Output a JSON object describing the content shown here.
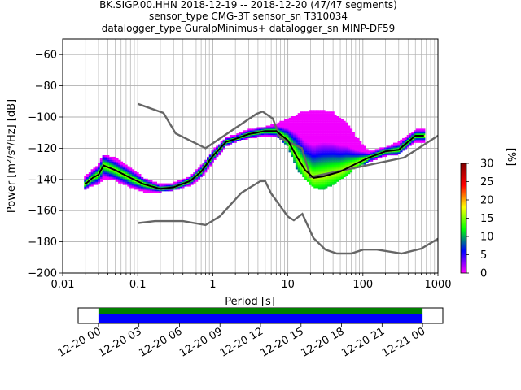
{
  "title_lines": [
    "BK.SIGP.00.HHN   2018-12-19 -- 2018-12-20  (47/47 segments)",
    "sensor_type CMG-3T sensor_sn T310034",
    "datalogger_type GuralpMinimus+ datalogger_sn MINP-DF59"
  ],
  "chart_data": {
    "type": "heatmap",
    "xlabel": "Period [s]",
    "ylabel": "Power [m²/s⁴/Hz] [dB]",
    "xscale": "log",
    "xlim": [
      0.01,
      1000
    ],
    "ylim": [
      -200,
      -50
    ],
    "x_ticks": [
      {
        "value": 0.01,
        "label": "0.01"
      },
      {
        "value": 0.1,
        "label": "0.1"
      },
      {
        "value": 1,
        "label": "1"
      },
      {
        "value": 10,
        "label": "10"
      },
      {
        "value": 100,
        "label": "100"
      },
      {
        "value": 1000,
        "label": "1000"
      }
    ],
    "y_ticks": [
      {
        "value": -60,
        "label": "−60"
      },
      {
        "value": -80,
        "label": "−80"
      },
      {
        "value": -100,
        "label": "−100"
      },
      {
        "value": -120,
        "label": "−120"
      },
      {
        "value": -140,
        "label": "−140"
      },
      {
        "value": -160,
        "label": "−160"
      },
      {
        "value": -180,
        "label": "−180"
      },
      {
        "value": -200,
        "label": "−200"
      }
    ],
    "grid": true,
    "nhnm": [
      [
        0.1,
        -91.5
      ],
      [
        0.22,
        -97.4
      ],
      [
        0.32,
        -110.5
      ],
      [
        0.8,
        -120
      ],
      [
        3.8,
        -98
      ],
      [
        4.6,
        -96.5
      ],
      [
        6.3,
        -101
      ],
      [
        7.9,
        -113.5
      ],
      [
        15.4,
        -120
      ],
      [
        20,
        -138.5
      ],
      [
        354.8,
        -126
      ],
      [
        1000,
        -112
      ]
    ],
    "nlnm": [
      [
        0.1,
        -168
      ],
      [
        0.17,
        -166.7
      ],
      [
        0.4,
        -166.7
      ],
      [
        0.8,
        -169.2
      ],
      [
        1.24,
        -163.7
      ],
      [
        2.4,
        -148.6
      ],
      [
        4.3,
        -141.1
      ],
      [
        5,
        -141.1
      ],
      [
        6,
        -149
      ],
      [
        10,
        -163.8
      ],
      [
        12,
        -166.2
      ],
      [
        15.6,
        -162.1
      ],
      [
        21.9,
        -177.5
      ],
      [
        31.6,
        -185
      ],
      [
        45,
        -187.5
      ],
      [
        70,
        -187.5
      ],
      [
        101,
        -185
      ],
      [
        154,
        -185
      ],
      [
        328,
        -187.5
      ],
      [
        600,
        -184.4
      ],
      [
        1000,
        -178
      ]
    ],
    "mode": [
      [
        0.02,
        -143
      ],
      [
        0.025,
        -139
      ],
      [
        0.03,
        -137
      ],
      [
        0.035,
        -131
      ],
      [
        0.05,
        -134
      ],
      [
        0.08,
        -139
      ],
      [
        0.12,
        -143
      ],
      [
        0.2,
        -146
      ],
      [
        0.3,
        -145
      ],
      [
        0.5,
        -141
      ],
      [
        0.7,
        -135
      ],
      [
        1,
        -125
      ],
      [
        1.5,
        -116
      ],
      [
        2,
        -114
      ],
      [
        3,
        -111
      ],
      [
        5,
        -109
      ],
      [
        7,
        -109
      ],
      [
        10,
        -115
      ],
      [
        13,
        -125
      ],
      [
        17,
        -134
      ],
      [
        22,
        -139
      ],
      [
        30,
        -138
      ],
      [
        50,
        -135
      ],
      [
        80,
        -130
      ],
      [
        120,
        -126
      ],
      [
        200,
        -122
      ],
      [
        300,
        -121
      ],
      [
        500,
        -112
      ],
      [
        650,
        -112
      ]
    ],
    "upper_envelope": [
      [
        0.02,
        -138
      ],
      [
        0.03,
        -130
      ],
      [
        0.035,
        -124
      ],
      [
        0.05,
        -126
      ],
      [
        0.08,
        -132
      ],
      [
        0.12,
        -139
      ],
      [
        0.2,
        -143
      ],
      [
        0.3,
        -142
      ],
      [
        0.5,
        -138
      ],
      [
        0.7,
        -131
      ],
      [
        1,
        -121
      ],
      [
        1.5,
        -113
      ],
      [
        2,
        -111
      ],
      [
        3,
        -108
      ],
      [
        5,
        -106
      ],
      [
        7,
        -104
      ],
      [
        10,
        -101
      ],
      [
        15,
        -97
      ],
      [
        25,
        -95
      ],
      [
        40,
        -97
      ],
      [
        60,
        -103
      ],
      [
        80,
        -112
      ],
      [
        120,
        -122
      ],
      [
        200,
        -119
      ],
      [
        300,
        -116
      ],
      [
        500,
        -108
      ],
      [
        650,
        -108
      ]
    ],
    "lower_envelope": [
      [
        0.02,
        -146
      ],
      [
        0.03,
        -143
      ],
      [
        0.035,
        -140
      ],
      [
        0.05,
        -141
      ],
      [
        0.08,
        -145
      ],
      [
        0.12,
        -148
      ],
      [
        0.2,
        -148
      ],
      [
        0.3,
        -147
      ],
      [
        0.5,
        -144
      ],
      [
        0.7,
        -139
      ],
      [
        1,
        -129
      ],
      [
        1.5,
        -119
      ],
      [
        2,
        -116
      ],
      [
        3,
        -114
      ],
      [
        5,
        -112
      ],
      [
        7,
        -112
      ],
      [
        10,
        -119
      ],
      [
        13,
        -133
      ],
      [
        17,
        -140
      ],
      [
        22,
        -145
      ],
      [
        30,
        -147
      ],
      [
        50,
        -140
      ],
      [
        80,
        -133
      ],
      [
        120,
        -129
      ],
      [
        200,
        -125
      ],
      [
        300,
        -124
      ],
      [
        500,
        -116
      ],
      [
        650,
        -116
      ]
    ],
    "colorbar": {
      "label": "[%]",
      "range": [
        0,
        30
      ],
      "ticks": [
        {
          "value": 0,
          "label": "0"
        },
        {
          "value": 5,
          "label": "5"
        },
        {
          "value": 10,
          "label": "10"
        },
        {
          "value": 15,
          "label": "15"
        },
        {
          "value": 20,
          "label": "20"
        },
        {
          "value": 25,
          "label": "25"
        },
        {
          "value": 30,
          "label": "30"
        }
      ],
      "colors": [
        "#ff00ff",
        "#0000ff",
        "#00ff00",
        "#ffff00",
        "#ff0000",
        "#800000"
      ]
    },
    "time_coverage": {
      "range_hours": [
        -1.5,
        25.5
      ],
      "covered_hours": [
        0,
        24
      ],
      "ticks": [
        {
          "value": 0,
          "label": "12-20 00"
        },
        {
          "value": 3,
          "label": "12-20 03"
        },
        {
          "value": 6,
          "label": "12-20 06"
        },
        {
          "value": 9,
          "label": "12-20 09"
        },
        {
          "value": 12,
          "label": "12-20 12"
        },
        {
          "value": 15,
          "label": "12-20 15"
        },
        {
          "value": 18,
          "label": "12-20 18"
        },
        {
          "value": 21,
          "label": "12-20 21"
        },
        {
          "value": 24,
          "label": "12-21 00"
        }
      ],
      "colors": {
        "data": "#0000ff",
        "gaps_top": "#008000"
      }
    }
  }
}
